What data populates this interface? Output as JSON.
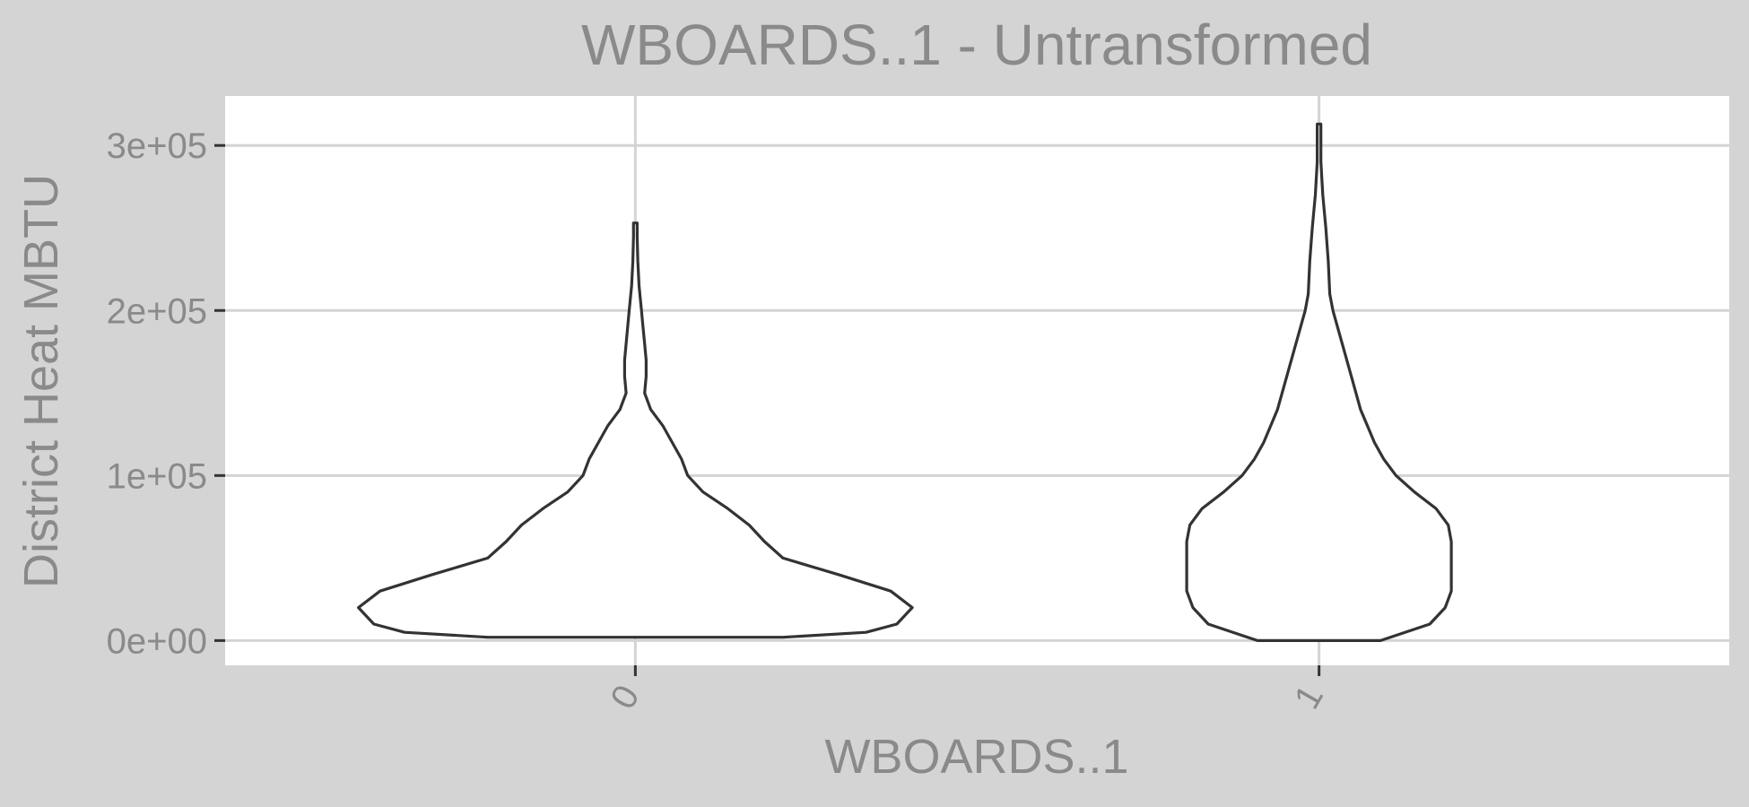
{
  "chart_data": {
    "type": "violin",
    "title": "WBOARDS..1 - Untransformed",
    "xlabel": "WBOARDS..1",
    "ylabel": "District Heat MBTU",
    "categories": [
      "0",
      "1"
    ],
    "ylim": [
      -15000,
      330000
    ],
    "yticks": [
      0,
      100000,
      200000,
      300000
    ],
    "ytick_labels": [
      "0e+00",
      "1e+05",
      "2e+05",
      "3e+05"
    ],
    "grid": true,
    "legend": "none",
    "colors": {
      "panel_background": "#d4d4d4",
      "plot_background": "#ffffff",
      "gridline": "#d4d4d4",
      "violin_outline": "#333333",
      "violin_fill": "#ffffff",
      "text": "#8a8a8a",
      "tick_mark": "#333333"
    },
    "violin_halfwidth_scale": 0.45,
    "series": [
      {
        "category": "0",
        "profile": [
          [
            2000,
            0.48
          ],
          [
            5000,
            0.75
          ],
          [
            10000,
            0.85
          ],
          [
            20000,
            0.9
          ],
          [
            30000,
            0.83
          ],
          [
            40000,
            0.66
          ],
          [
            50000,
            0.48
          ],
          [
            60000,
            0.42
          ],
          [
            70000,
            0.37
          ],
          [
            80000,
            0.3
          ],
          [
            90000,
            0.22
          ],
          [
            100000,
            0.17
          ],
          [
            110000,
            0.15
          ],
          [
            120000,
            0.12
          ],
          [
            130000,
            0.09
          ],
          [
            140000,
            0.05
          ],
          [
            150000,
            0.03
          ],
          [
            160000,
            0.035
          ],
          [
            170000,
            0.035
          ],
          [
            180000,
            0.03
          ],
          [
            190000,
            0.025
          ],
          [
            200000,
            0.02
          ],
          [
            215000,
            0.012
          ],
          [
            230000,
            0.008
          ],
          [
            245000,
            0.006
          ],
          [
            253000,
            0.006
          ]
        ]
      },
      {
        "category": "1",
        "profile": [
          [
            0,
            0.2
          ],
          [
            10000,
            0.36
          ],
          [
            20000,
            0.41
          ],
          [
            30000,
            0.43
          ],
          [
            40000,
            0.43
          ],
          [
            50000,
            0.43
          ],
          [
            60000,
            0.43
          ],
          [
            70000,
            0.42
          ],
          [
            80000,
            0.38
          ],
          [
            90000,
            0.31
          ],
          [
            100000,
            0.25
          ],
          [
            110000,
            0.21
          ],
          [
            120000,
            0.18
          ],
          [
            140000,
            0.135
          ],
          [
            160000,
            0.105
          ],
          [
            180000,
            0.075
          ],
          [
            200000,
            0.045
          ],
          [
            210000,
            0.035
          ],
          [
            230000,
            0.03
          ],
          [
            250000,
            0.022
          ],
          [
            270000,
            0.012
          ],
          [
            290000,
            0.006
          ],
          [
            313000,
            0.006
          ]
        ]
      }
    ]
  }
}
